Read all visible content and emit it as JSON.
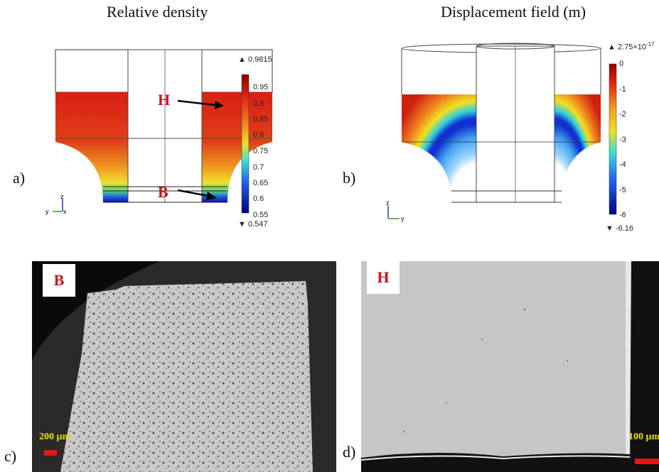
{
  "titles": {
    "a": "Relative density",
    "b": "Displacement field (m)"
  },
  "panel_labels": {
    "a": "a)",
    "b": "b)",
    "c": "c)",
    "d": "d)"
  },
  "density_colorbar": {
    "max_marker": "▲ 0.9815",
    "min_marker": "▼ 0.547",
    "ticks": [
      "0.95",
      "0.9",
      "0.85",
      "0.8",
      "0.75",
      "0.7",
      "0.65",
      "0.6",
      "0.55"
    ]
  },
  "displacement_colorbar": {
    "max_marker_prefix": "▲ 2.75×10",
    "max_marker_exp": "-17",
    "min_marker": "▼ -6.16",
    "ticks": [
      "0",
      "-1",
      "-2",
      "-3",
      "-4",
      "-5",
      "-6"
    ]
  },
  "annotations": {
    "H": "H",
    "B": "B"
  },
  "micrographs": {
    "c": {
      "letter": "B",
      "scale": "200 µm"
    },
    "d": {
      "letter": "H",
      "scale": "100 µm"
    }
  },
  "axes_triad": {
    "z": "z",
    "y": "y",
    "x": "x"
  },
  "colors": {
    "red_label": "#c8161d",
    "scale_text": "#e8e000",
    "scale_bar": "#e01818"
  }
}
